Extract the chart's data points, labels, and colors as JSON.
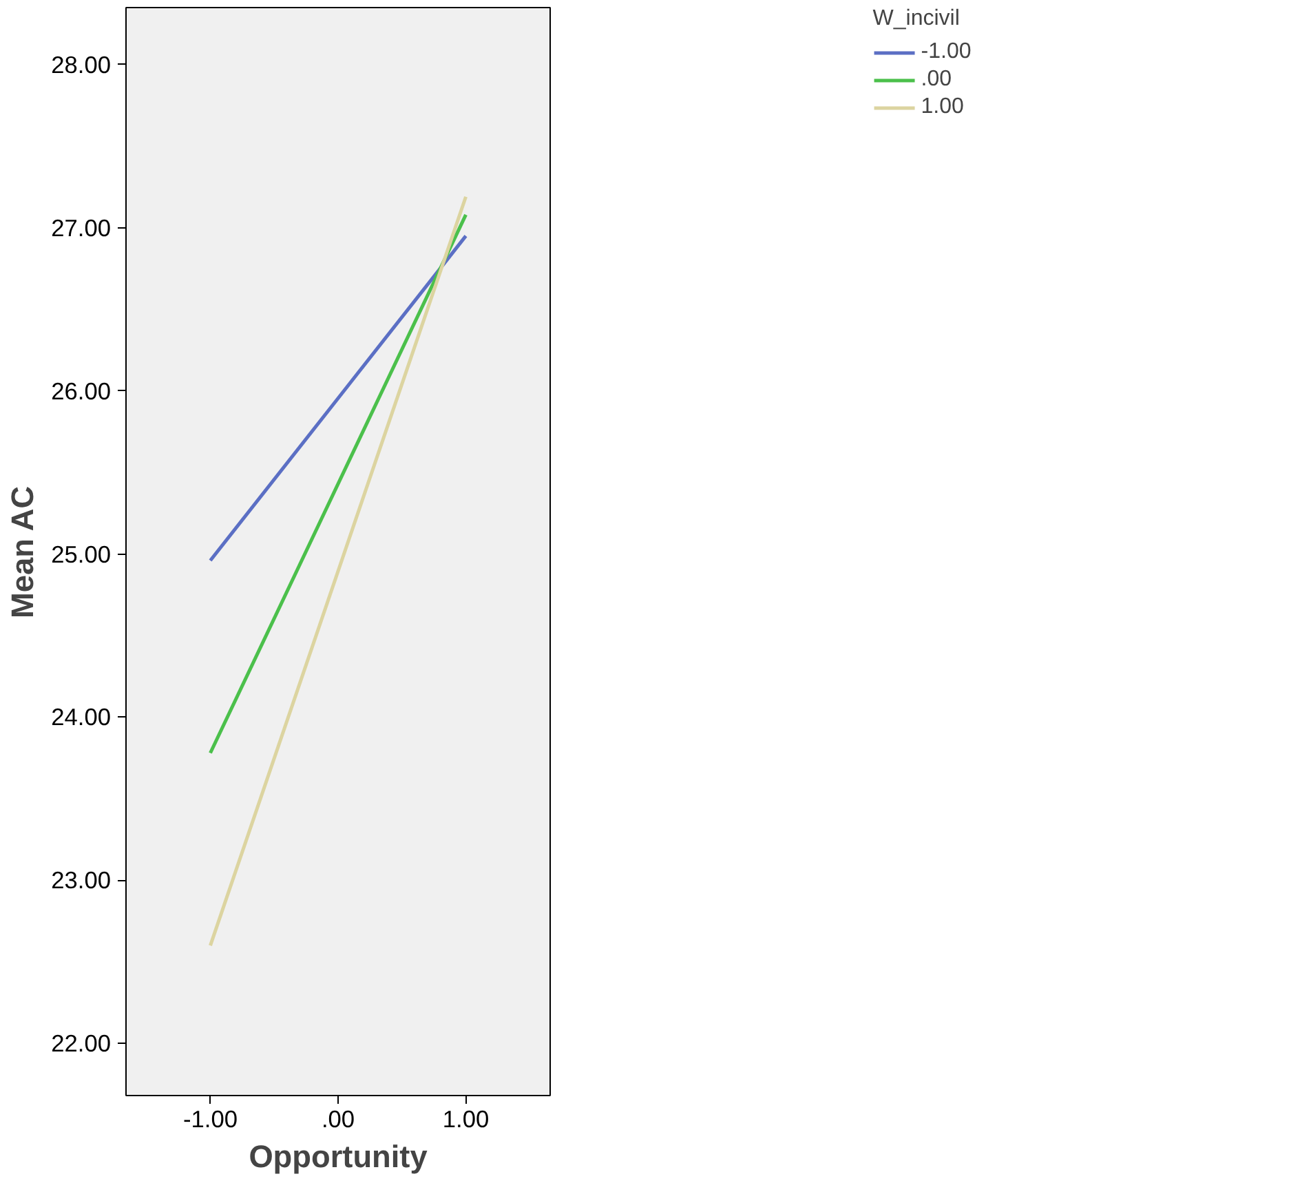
{
  "chart_data": {
    "type": "line",
    "xlabel": "Opportunity",
    "ylabel": "Mean AC",
    "legend_title": "W_incivil",
    "x": [
      -1,
      1
    ],
    "series": [
      {
        "name": "-1.00",
        "color": "#5b6fc4",
        "values": [
          24.96,
          26.95
        ]
      },
      {
        "name": ".00",
        "color": "#4bc04b",
        "values": [
          23.78,
          27.08
        ]
      },
      {
        "name": "1.00",
        "color": "#dcd4a0",
        "values": [
          22.6,
          27.19
        ]
      }
    ],
    "xlim": [
      -1.66,
      1.66
    ],
    "ylim": [
      21.68,
      28.35
    ],
    "xticks": [
      {
        "value": -1,
        "label": "-1.00"
      },
      {
        "value": 0,
        "label": ".00"
      },
      {
        "value": 1,
        "label": "1.00"
      }
    ],
    "yticks": [
      {
        "value": 22,
        "label": "22.00"
      },
      {
        "value": 23,
        "label": "23.00"
      },
      {
        "value": 24,
        "label": "24.00"
      },
      {
        "value": 25,
        "label": "25.00"
      },
      {
        "value": 26,
        "label": "26.00"
      },
      {
        "value": 27,
        "label": "27.00"
      },
      {
        "value": 28,
        "label": "28.00"
      }
    ],
    "grid": false,
    "legend": "top right",
    "marker": "none",
    "line_style": "solid"
  }
}
